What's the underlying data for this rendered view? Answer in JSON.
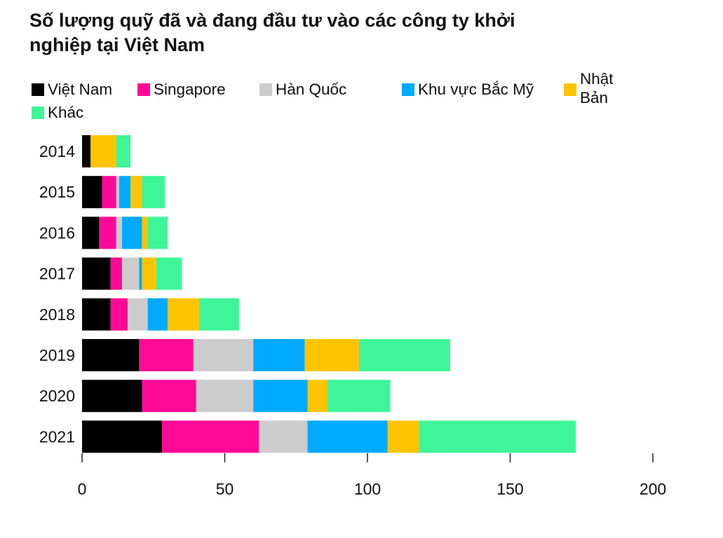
{
  "title": "Số lượng quỹ đã và đang đầu tư vào các công ty khởi nghiệp tại Việt Nam",
  "colors": {
    "Việt Nam": "#000000",
    "Singapore": "#ff0a97",
    "Hàn Quốc": "#cccccc",
    "Khu vực Bắc Mỹ": "#00aaff",
    "Nhật Bản": "#ffc400",
    "Khác": "#3ff599"
  },
  "chart_data": {
    "type": "bar",
    "orientation": "horizontal",
    "stacked": true,
    "title": "Số lượng quỹ đã và đang đầu tư vào các công ty khởi nghiệp tại Việt Nam",
    "categories": [
      "2014",
      "2015",
      "2016",
      "2017",
      "2018",
      "2019",
      "2020",
      "2021"
    ],
    "series": [
      {
        "name": "Việt Nam",
        "values": [
          3,
          7,
          6,
          10,
          10,
          20,
          21,
          28
        ]
      },
      {
        "name": "Singapore",
        "values": [
          0,
          5,
          6,
          4,
          6,
          19,
          19,
          34
        ]
      },
      {
        "name": "Hàn Quốc",
        "values": [
          0,
          1,
          2,
          6,
          7,
          21,
          20,
          17
        ]
      },
      {
        "name": "Khu vực Bắc Mỹ",
        "values": [
          0,
          4,
          7,
          1,
          7,
          18,
          19,
          28
        ]
      },
      {
        "name": "Nhật Bản",
        "values": [
          9,
          4,
          2,
          5,
          11,
          19,
          7,
          11
        ]
      },
      {
        "name": "Khác",
        "values": [
          5,
          8,
          7,
          9,
          14,
          32,
          22,
          55
        ]
      }
    ],
    "xticks": [
      "0",
      "50",
      "100",
      "150",
      "200"
    ],
    "xlim": [
      0,
      200
    ],
    "grid": false,
    "legend_position": "top"
  }
}
